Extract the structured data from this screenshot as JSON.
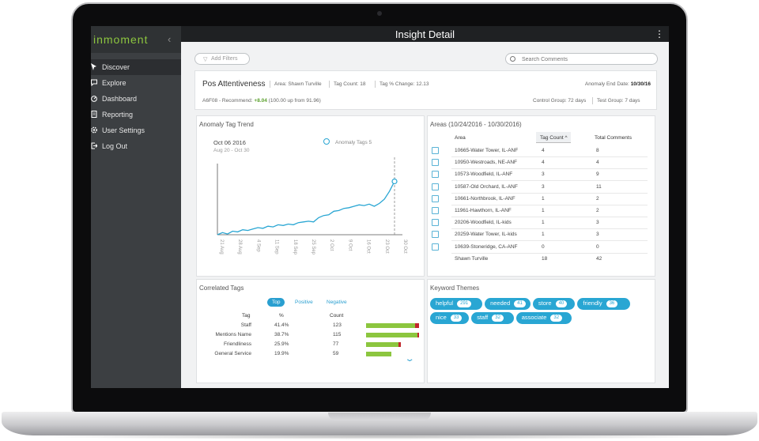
{
  "app": {
    "brand": "inmoment",
    "title": "Insight Detail",
    "menu_glyph": "⋮",
    "collapse_glyph": "‹"
  },
  "sidebar": {
    "items": [
      {
        "label": "Discover",
        "active": true,
        "icon": "cursor-icon"
      },
      {
        "label": "Explore",
        "active": false,
        "icon": "chat-icon"
      },
      {
        "label": "Dashboard",
        "active": false,
        "icon": "gauge-icon"
      },
      {
        "label": "Reporting",
        "active": false,
        "icon": "document-icon"
      },
      {
        "label": "User Settings",
        "active": false,
        "icon": "gear-icon"
      },
      {
        "label": "Log Out",
        "active": false,
        "icon": "logout-icon"
      }
    ]
  },
  "toolbar": {
    "add_filters": "Add Filters",
    "search_placeholder": "Search Comments"
  },
  "summary": {
    "title": "Pos Attentiveness",
    "area": "Area: Shawn Turville",
    "tag_count": "Tag Count: 18",
    "tag_change": "Tag % Change: 12.13",
    "end_date_label": "Anomaly End Date:",
    "end_date": "10/30/16",
    "recommend_prefix": "A6F08 - Recommend:",
    "recommend_delta": "+8.04",
    "recommend_suffix": "(100.00 up from 91.96)",
    "control_group": "Control Group: 72 days",
    "test_group": "Test Group: 7 days"
  },
  "trend": {
    "title": "Anomaly Tag Trend",
    "date": "Oct 06 2016",
    "range": "Aug 20 - Oct 30",
    "legend": "Anomaly Tags 5",
    "accent": "#29a6d3"
  },
  "chart_data": {
    "type": "line",
    "title": "Anomaly Tag Trend",
    "x_ticks": [
      "21 Aug",
      "28 Aug",
      "4 Sep",
      "11 Sep",
      "18 Sep",
      "25 Sep",
      "2 Oct",
      "9 Oct",
      "16 Oct",
      "23 Oct",
      "30 Oct"
    ],
    "series": [
      {
        "name": "Anomaly Tags",
        "values": [
          0.0,
          0.03,
          0.01,
          0.05,
          0.04,
          0.07,
          0.06,
          0.08,
          0.1,
          0.09,
          0.12,
          0.11,
          0.14,
          0.13,
          0.15,
          0.14,
          0.17,
          0.18,
          0.19,
          0.18,
          0.24,
          0.27,
          0.28,
          0.33,
          0.34,
          0.37,
          0.38,
          0.4,
          0.42,
          0.41,
          0.43,
          0.4,
          0.44,
          0.5,
          0.61,
          0.75
        ]
      }
    ],
    "highlight_x": "Oct 30",
    "ylim": [
      0,
      1
    ],
    "grid": false
  },
  "areas": {
    "title": "Areas (10/24/2016 - 10/30/2016)",
    "columns": [
      "Area",
      "Tag Count",
      "Total Comments"
    ],
    "sort_indicator": "^",
    "rows": [
      [
        "10665-Water Tower, IL-ANF",
        "4",
        "8"
      ],
      [
        "10950-Westroads, NE-ANF",
        "4",
        "4"
      ],
      [
        "10573-Woodfield, IL-ANF",
        "3",
        "9"
      ],
      [
        "10587-Old Orchard, IL-ANF",
        "3",
        "11"
      ],
      [
        "10661-Northbrook, IL-ANF",
        "1",
        "2"
      ],
      [
        "11961-Hawthorn, IL-ANF",
        "1",
        "2"
      ],
      [
        "20206-Woodfield, IL-kids",
        "1",
        "3"
      ],
      [
        "20259-Water Tower, IL-kids",
        "1",
        "3"
      ],
      [
        "10639-Stoneridge, CA-ANF",
        "0",
        "0"
      ]
    ],
    "total": [
      "Shawn Turville",
      "18",
      "42"
    ]
  },
  "correlated": {
    "title": "Correlated Tags",
    "tabs": [
      "Top",
      "Positive",
      "Negative"
    ],
    "columns": [
      "Tag",
      "%",
      "Count"
    ],
    "rows": [
      {
        "tag": "Staff",
        "pct": "41.4%",
        "count": "123",
        "pos": 0.92,
        "neg": 0.08
      },
      {
        "tag": "Mentions Name",
        "pct": "38.7%",
        "count": "115",
        "pos": 0.97,
        "neg": 0.03
      },
      {
        "tag": "Friendliness",
        "pct": "25.9%",
        "count": "77",
        "pos": 0.61,
        "neg": 0.04
      },
      {
        "tag": "General Service",
        "pct": "19.9%",
        "count": "59",
        "pos": 0.48,
        "neg": 0.0
      }
    ],
    "expand_glyph": "⌄",
    "positive_color": "#8cc63f",
    "negative_color": "#c1272d"
  },
  "keywords": {
    "title": "Keyword Themes",
    "items": [
      {
        "word": "helpful",
        "count": "291"
      },
      {
        "word": "needed",
        "count": "41"
      },
      {
        "word": "store",
        "count": "40"
      },
      {
        "word": "friendly",
        "count": "36"
      },
      {
        "word": "nice",
        "count": "33"
      },
      {
        "word": "staff",
        "count": "32"
      },
      {
        "word": "associate",
        "count": "32"
      }
    ]
  }
}
